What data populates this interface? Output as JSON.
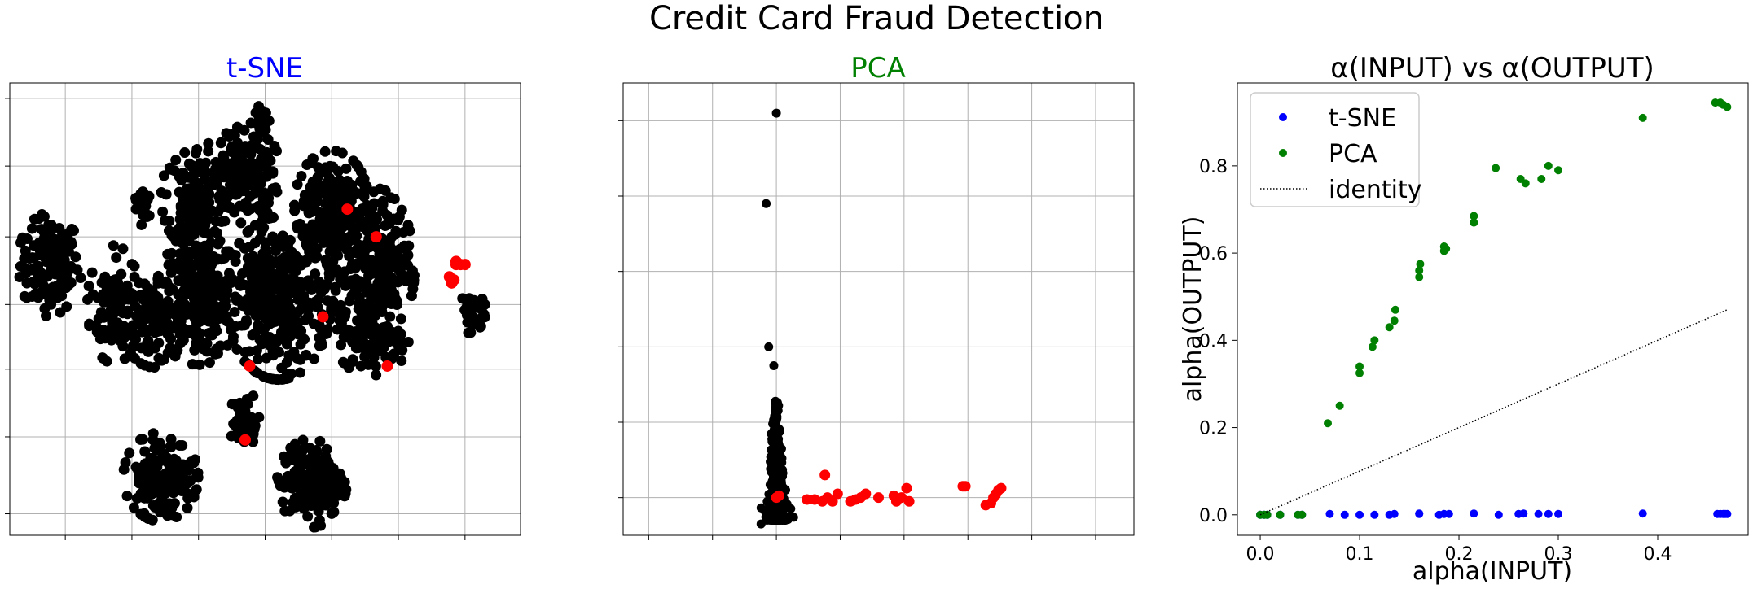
{
  "figure": {
    "suptitle": "Credit Card Fraud Detection"
  },
  "colors": {
    "normal_points": "#000000",
    "fraud_points": "#ff0000",
    "tsne_title": "#0000ff",
    "pca_title": "#008000",
    "series_tsne": "#0000ff",
    "series_pca": "#008000",
    "identity": "#000000",
    "grid": "#b0b0b0"
  },
  "chart_data": [
    {
      "type": "scatter",
      "title": "t-SNE",
      "grid": true,
      "ticklabels_shown": false,
      "xlim": [
        -115,
        115
      ],
      "ylim": [
        -72,
        75
      ],
      "xticks": [
        -90,
        -60,
        -30,
        0,
        30,
        60,
        90
      ],
      "yticks": [
        -65,
        -40,
        -18,
        3,
        25,
        48,
        70
      ],
      "clusters": [
        {
          "name": "far-left",
          "cx": -97,
          "cy": 16,
          "rx": 12,
          "ry": 14,
          "n": 140
        },
        {
          "name": "left",
          "cx": -68,
          "cy": 3,
          "rx": 10,
          "ry": 16,
          "n": 110
        },
        {
          "name": "left-mid",
          "cx": -50,
          "cy": -3,
          "rx": 12,
          "ry": 12,
          "n": 90
        },
        {
          "name": "center-left",
          "cx": -30,
          "cy": 5,
          "rx": 16,
          "ry": 18,
          "n": 260
        },
        {
          "name": "top-left",
          "cx": -30,
          "cy": 38,
          "rx": 14,
          "ry": 15,
          "n": 170
        },
        {
          "name": "top-center",
          "cx": -8,
          "cy": 46,
          "rx": 12,
          "ry": 14,
          "n": 150
        },
        {
          "name": "center",
          "cx": 6,
          "cy": 5,
          "rx": 20,
          "ry": 22,
          "n": 360
        },
        {
          "name": "top-right",
          "cx": 30,
          "cy": 35,
          "rx": 14,
          "ry": 15,
          "n": 190
        },
        {
          "name": "right",
          "cx": 48,
          "cy": 15,
          "rx": 16,
          "ry": 22,
          "n": 260
        },
        {
          "name": "right-lower",
          "cx": 48,
          "cy": -8,
          "rx": 14,
          "ry": 10,
          "n": 110
        },
        {
          "name": "lower-left",
          "cx": -47,
          "cy": -53,
          "rx": 14,
          "ry": 12,
          "n": 150
        },
        {
          "name": "lower-mid",
          "cx": -9,
          "cy": -35,
          "rx": 6,
          "ry": 8,
          "n": 40
        },
        {
          "name": "lower-right",
          "cx": 21,
          "cy": -55,
          "rx": 13,
          "ry": 12,
          "n": 150
        },
        {
          "name": "far-right",
          "cx": 92,
          "cy": 1,
          "rx": 6,
          "ry": 6,
          "n": 30
        },
        {
          "name": "outlier-top",
          "cx": -2,
          "cy": 64,
          "rx": 4,
          "ry": 4,
          "n": 15
        },
        {
          "name": "small-top-left",
          "cx": -55,
          "cy": 36,
          "rx": 4,
          "ry": 6,
          "n": 20
        }
      ],
      "fraud": [
        {
          "x": 37,
          "y": 34
        },
        {
          "x": 50,
          "y": 25
        },
        {
          "x": 26,
          "y": -1
        },
        {
          "x": -7,
          "y": -17
        },
        {
          "x": 55,
          "y": -17
        },
        {
          "x": -9,
          "y": -41
        },
        {
          "x": 86,
          "y": 17
        },
        {
          "x": 86,
          "y": 16
        },
        {
          "x": 88,
          "y": 16
        },
        {
          "x": 90,
          "y": 16
        },
        {
          "x": 83,
          "y": 12
        },
        {
          "x": 85,
          "y": 11
        },
        {
          "x": 84,
          "y": 10
        }
      ]
    },
    {
      "type": "scatter",
      "title": "PCA",
      "grid": true,
      "ticklabels_shown": false,
      "xlim": [
        -60,
        140
      ],
      "ylim": [
        -10,
        110
      ],
      "xticks": [
        -50,
        -25,
        0,
        25,
        50,
        75,
        100,
        125
      ],
      "yticks": [
        0,
        20,
        40,
        60,
        80,
        100
      ],
      "normal_outliers": [
        {
          "x": 0,
          "y": 102
        },
        {
          "x": -4,
          "y": 78
        },
        {
          "x": -3,
          "y": 40
        },
        {
          "x": -1,
          "y": 35
        },
        {
          "x": -6,
          "y": -7
        },
        {
          "x": -2,
          "y": -5
        }
      ],
      "fraud": [
        {
          "x": 0,
          "y": 0
        },
        {
          "x": 1,
          "y": 0.5
        },
        {
          "x": 12,
          "y": -0.5
        },
        {
          "x": 15,
          "y": -0.5
        },
        {
          "x": 18,
          "y": -1
        },
        {
          "x": 19,
          "y": 6
        },
        {
          "x": 20,
          "y": 0
        },
        {
          "x": 22,
          "y": -1
        },
        {
          "x": 24,
          "y": 1
        },
        {
          "x": 29,
          "y": -1
        },
        {
          "x": 31,
          "y": -0.5
        },
        {
          "x": 33,
          "y": 0
        },
        {
          "x": 35,
          "y": 1
        },
        {
          "x": 40,
          "y": 0
        },
        {
          "x": 46,
          "y": 0.5
        },
        {
          "x": 47,
          "y": -1
        },
        {
          "x": 49,
          "y": 0
        },
        {
          "x": 51,
          "y": 2.5
        },
        {
          "x": 52,
          "y": -1
        },
        {
          "x": 73,
          "y": 3
        },
        {
          "x": 74,
          "y": 3
        },
        {
          "x": 82,
          "y": -2
        },
        {
          "x": 84,
          "y": -1.5
        },
        {
          "x": 85,
          "y": 0
        },
        {
          "x": 86,
          "y": 1
        },
        {
          "x": 87,
          "y": 2
        },
        {
          "x": 88,
          "y": 2.5
        }
      ]
    },
    {
      "type": "scatter",
      "title": "α(INPUT) vs α(OUTPUT)",
      "xlabel": "alpha(INPUT)",
      "ylabel": "alpha(OUTPUT)",
      "xlim": [
        -0.023,
        0.491
      ],
      "ylim": [
        -0.047,
        0.99
      ],
      "xticks": [
        0.0,
        0.1,
        0.2,
        0.3,
        0.4
      ],
      "xtick_labels": [
        "0.0",
        "0.1",
        "0.2",
        "0.3",
        "0.4"
      ],
      "yticks": [
        0.0,
        0.2,
        0.4,
        0.6,
        0.8
      ],
      "ytick_labels": [
        "0.0",
        "0.2",
        "0.4",
        "0.6",
        "0.8"
      ],
      "grid": false,
      "legend": {
        "position": "top-left",
        "entries": [
          "t-SNE",
          "PCA",
          "identity"
        ]
      },
      "series": [
        {
          "name": "t-SNE",
          "marker": "dot",
          "x": [
            0.0,
            0.004,
            0.007,
            0.02,
            0.038,
            0.042,
            0.07,
            0.085,
            0.1,
            0.115,
            0.13,
            0.135,
            0.16,
            0.16,
            0.18,
            0.185,
            0.19,
            0.215,
            0.24,
            0.26,
            0.265,
            0.28,
            0.29,
            0.3,
            0.385,
            0.46,
            0.463,
            0.466,
            0.468,
            0.47
          ],
          "y": [
            0.0,
            0.0,
            0.0,
            0.0,
            0.0,
            0.0,
            0.002,
            0.0,
            0.0,
            0.0,
            0.0,
            0.002,
            0.003,
            0.002,
            0.0,
            0.002,
            0.002,
            0.003,
            0.0,
            0.002,
            0.003,
            0.002,
            0.002,
            0.002,
            0.003,
            0.002,
            0.002,
            0.002,
            0.002,
            0.002
          ]
        },
        {
          "name": "PCA",
          "marker": "dot",
          "x": [
            0.0,
            0.004,
            0.007,
            0.02,
            0.038,
            0.042,
            0.068,
            0.08,
            0.1,
            0.1,
            0.113,
            0.115,
            0.13,
            0.135,
            0.136,
            0.16,
            0.16,
            0.161,
            0.185,
            0.185,
            0.187,
            0.215,
            0.215,
            0.237,
            0.262,
            0.267,
            0.283,
            0.29,
            0.3,
            0.385,
            0.458,
            0.463,
            0.466,
            0.47
          ],
          "y": [
            0.0,
            0.0,
            0.0,
            0.0,
            0.0,
            0.0,
            0.21,
            0.25,
            0.325,
            0.34,
            0.385,
            0.4,
            0.43,
            0.445,
            0.47,
            0.545,
            0.56,
            0.575,
            0.605,
            0.615,
            0.61,
            0.67,
            0.685,
            0.795,
            0.77,
            0.76,
            0.77,
            0.8,
            0.79,
            0.91,
            0.945,
            0.945,
            0.94,
            0.935
          ]
        },
        {
          "name": "identity",
          "marker": "dotted-line",
          "x": [
            0.0,
            0.47
          ],
          "y": [
            0.0,
            0.47
          ]
        }
      ]
    }
  ]
}
